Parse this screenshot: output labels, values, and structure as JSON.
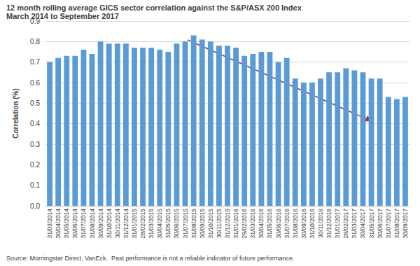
{
  "chart_data": {
    "type": "bar",
    "title": "12 month rolling average GICS sector correlation against the S&P/ASX 200 Index",
    "subtitle": "March 2014 to September 2017",
    "y_label": "Correlation (%)",
    "footnote": "Source: Morningstar Direct, VanEck.  Past performance is not a reliable indicator of future performance.",
    "categories": [
      "31/03/2014",
      "30/04/2014",
      "31/05/2014",
      "30/06/2014",
      "31/07/2014",
      "31/08/2014",
      "30/09/2014",
      "31/10/2014",
      "30/11/2014",
      "31/12/2014",
      "31/01/2015",
      "28/02/2015",
      "31/03/2015",
      "30/04/2015",
      "31/05/2015",
      "30/06/2015",
      "31/07/2015",
      "31/08/2015",
      "30/09/2015",
      "31/10/2015",
      "30/11/2015",
      "31/12/2015",
      "31/01/2016",
      "29/02/2016",
      "31/03/2016",
      "30/04/2016",
      "31/05/2016",
      "30/06/2016",
      "31/07/2016",
      "31/08/2016",
      "30/09/2016",
      "31/10/2016",
      "30/11/2016",
      "31/12/2016",
      "31/01/2017",
      "28/02/2017",
      "31/03/2017",
      "30/04/2017",
      "31/05/2017",
      "30/06/2017",
      "31/07/2017",
      "31/08/2017",
      "30/09/2017"
    ],
    "values": [
      0.7,
      0.72,
      0.73,
      0.73,
      0.76,
      0.74,
      0.8,
      0.79,
      0.79,
      0.79,
      0.77,
      0.77,
      0.77,
      0.76,
      0.75,
      0.79,
      0.8,
      0.83,
      0.81,
      0.8,
      0.78,
      0.78,
      0.77,
      0.73,
      0.74,
      0.75,
      0.75,
      0.7,
      0.72,
      0.62,
      0.6,
      0.6,
      0.62,
      0.65,
      0.65,
      0.67,
      0.66,
      0.65,
      0.62,
      0.62,
      0.53,
      0.52,
      0.53
    ],
    "color": "#5b9bd5",
    "ylim": [
      0,
      0.9
    ],
    "yticks": [
      {
        "value": 0,
        "label": "0.0"
      },
      0.1,
      0.2,
      0.3,
      0.4,
      0.5,
      0.6,
      0.7,
      0.8,
      0.9
    ],
    "grid": true
  }
}
